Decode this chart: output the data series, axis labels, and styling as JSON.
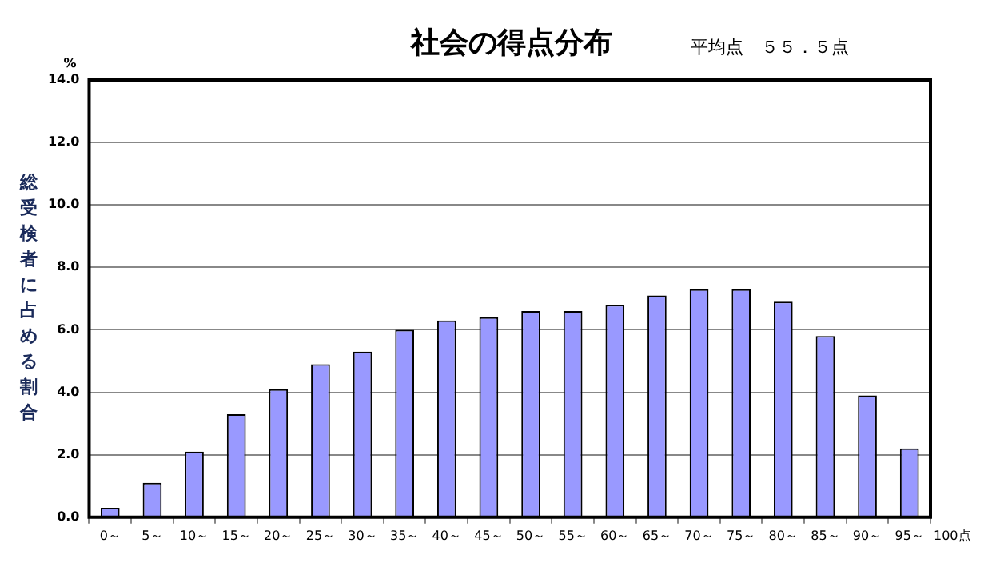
{
  "chart_data": {
    "type": "bar",
    "title": "社会の得点分布",
    "subtitle": "平均点　５５．５点",
    "ylabel": "総受検者に占める割合",
    "annotations": [
      "%",
      "100点"
    ],
    "categories": [
      "0～",
      "5～",
      "10～",
      "15～",
      "20～",
      "25～",
      "30～",
      "35～",
      "40～",
      "45～",
      "50～",
      "55～",
      "60～",
      "65～",
      "70～",
      "75～",
      "80～",
      "85～",
      "90～",
      "95～"
    ],
    "values": [
      0.3,
      1.1,
      2.1,
      3.3,
      4.1,
      4.9,
      5.3,
      6.0,
      6.3,
      6.4,
      6.6,
      6.6,
      6.8,
      7.1,
      7.3,
      7.3,
      6.9,
      5.8,
      3.9,
      2.2
    ],
    "color": "#9999ff",
    "ylim": [
      0,
      14
    ],
    "yticks": [
      {
        "value": 0,
        "label": "0.0"
      },
      {
        "value": 2,
        "label": "2.0"
      },
      {
        "value": 4,
        "label": "4.0"
      },
      {
        "value": 6,
        "label": "6.0"
      },
      {
        "value": 8,
        "label": "8.0"
      },
      {
        "value": 10,
        "label": "10.0"
      },
      {
        "value": 12,
        "label": "12.0"
      },
      {
        "value": 14,
        "label": "14.0"
      }
    ],
    "grid": "y",
    "legend": false
  }
}
